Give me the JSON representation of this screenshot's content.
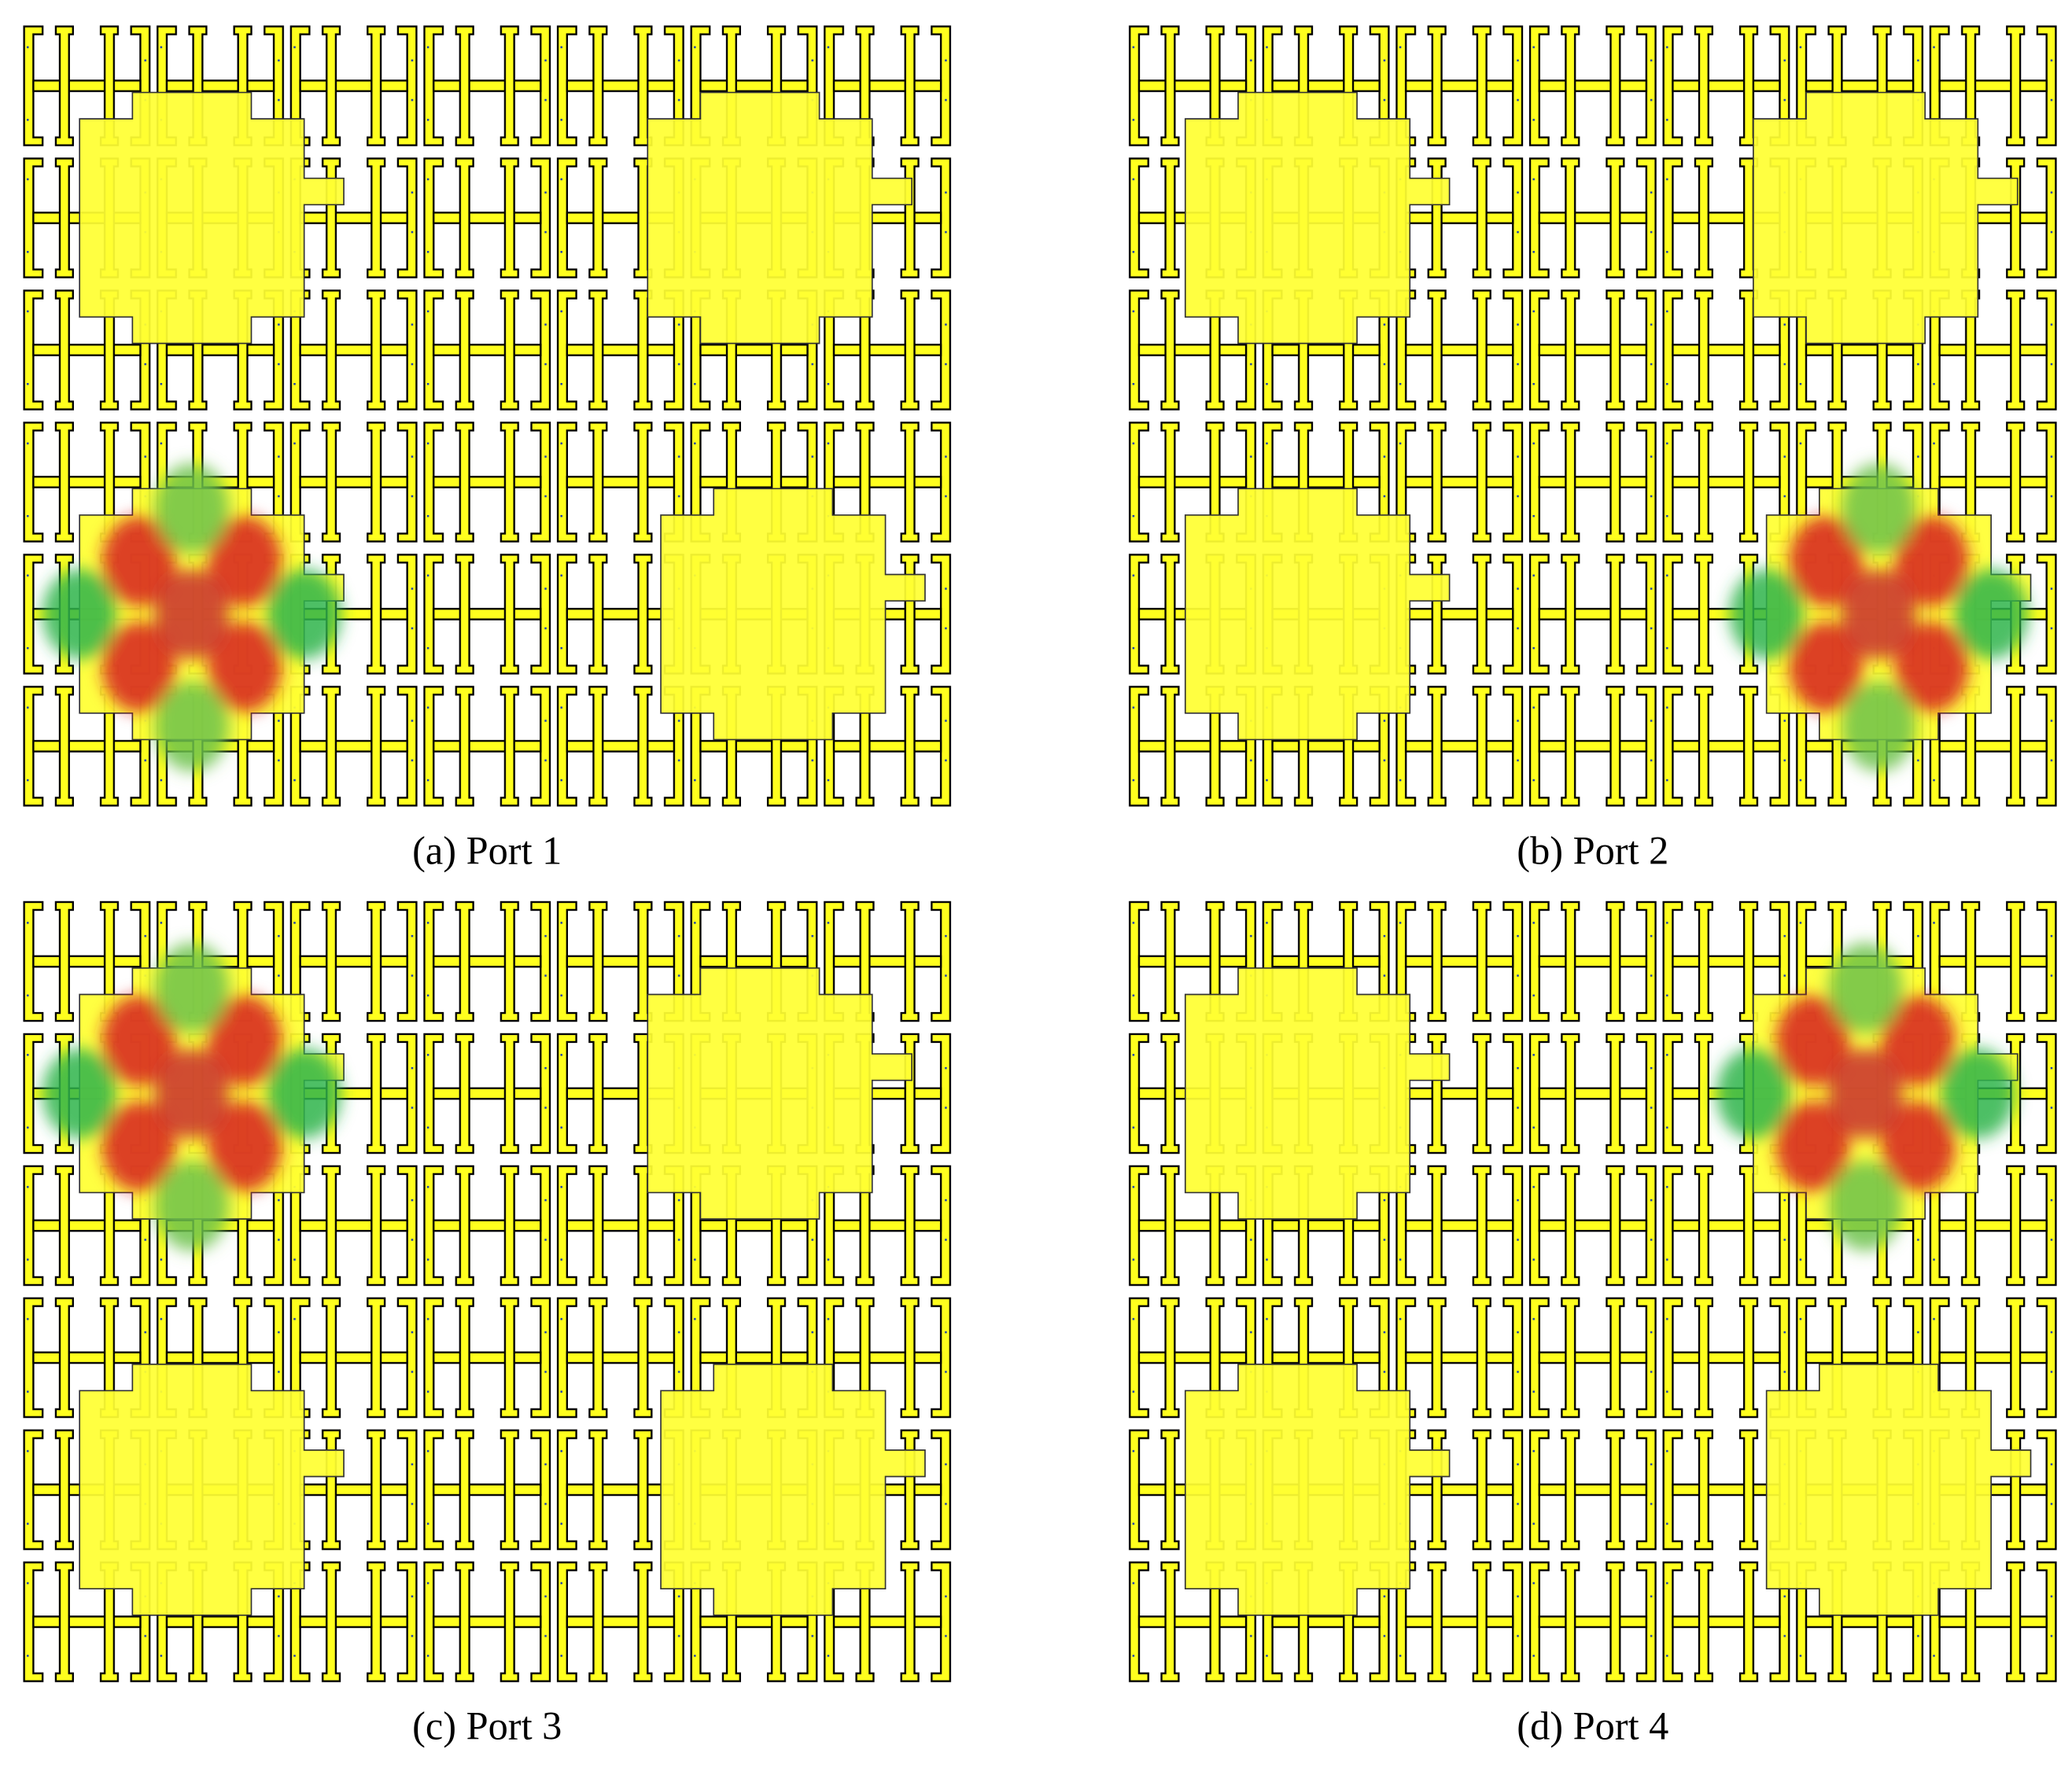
{
  "panels": [
    {
      "caption": "(a) Port 1"
    },
    {
      "caption": "(b) Port 2"
    },
    {
      "caption": "(c) Port 3"
    },
    {
      "caption": "(d) Port 4"
    }
  ]
}
